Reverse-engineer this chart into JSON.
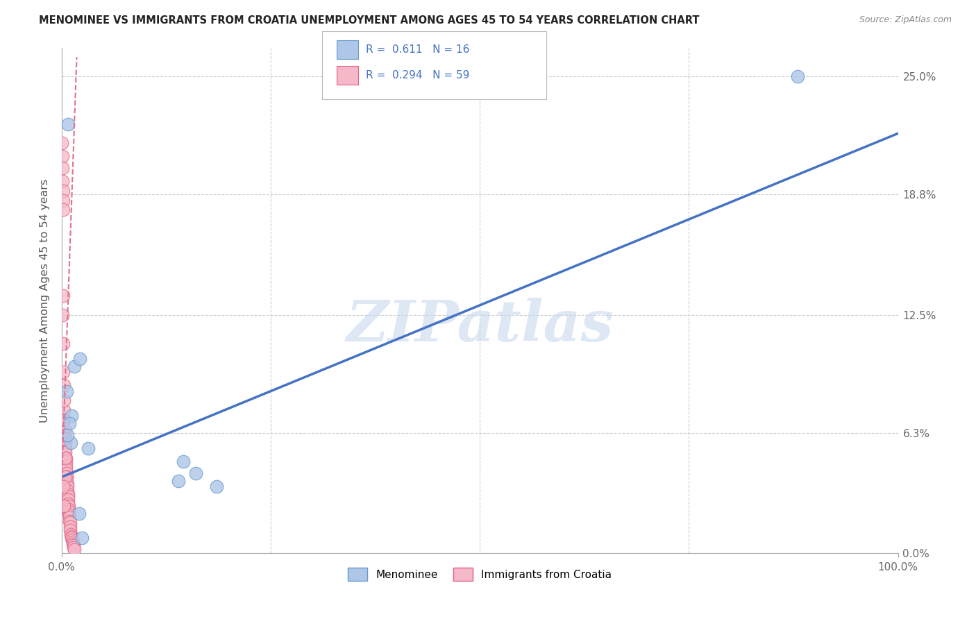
{
  "title": "MENOMINEE VS IMMIGRANTS FROM CROATIA UNEMPLOYMENT AMONG AGES 45 TO 54 YEARS CORRELATION CHART",
  "source": "Source: ZipAtlas.com",
  "ylabel": "Unemployment Among Ages 45 to 54 years",
  "xlim": [
    0,
    100
  ],
  "ylim": [
    0,
    26.5
  ],
  "ylabel_ticks": [
    0.0,
    6.3,
    12.5,
    18.8,
    25.0
  ],
  "ylabel_labels": [
    "0.0%",
    "6.3%",
    "12.5%",
    "18.8%",
    "25.0%"
  ],
  "xtick_positions": [
    0,
    100
  ],
  "xtick_labels": [
    "0.0%",
    "100.0%"
  ],
  "menominee_x": [
    0.8,
    1.5,
    2.2,
    1.2,
    0.9,
    1.1,
    0.6,
    3.2,
    0.7,
    14.5,
    16.0,
    14.0,
    18.5,
    88.0,
    2.1,
    2.4
  ],
  "menominee_y": [
    22.5,
    9.8,
    10.2,
    7.2,
    6.8,
    5.8,
    8.5,
    5.5,
    6.2,
    4.8,
    4.2,
    3.8,
    3.5,
    25.0,
    2.1,
    0.8
  ],
  "croatia_x": [
    0.05,
    0.08,
    0.1,
    0.12,
    0.15,
    0.18,
    0.2,
    0.22,
    0.25,
    0.28,
    0.3,
    0.32,
    0.35,
    0.38,
    0.4,
    0.42,
    0.45,
    0.48,
    0.5,
    0.52,
    0.55,
    0.58,
    0.6,
    0.62,
    0.65,
    0.68,
    0.7,
    0.72,
    0.75,
    0.78,
    0.8,
    0.82,
    0.85,
    0.88,
    0.9,
    0.92,
    0.95,
    0.98,
    1.0,
    1.05,
    1.1,
    1.15,
    1.2,
    1.25,
    1.3,
    1.35,
    1.4,
    1.45,
    1.5,
    0.1,
    0.15,
    0.2,
    0.25,
    0.3,
    0.35,
    0.4,
    0.45,
    0.2,
    0.3
  ],
  "croatia_y": [
    21.5,
    20.8,
    20.2,
    19.5,
    19.0,
    18.5,
    18.0,
    13.5,
    8.8,
    7.5,
    7.0,
    6.5,
    6.2,
    6.0,
    5.8,
    5.5,
    5.3,
    5.0,
    4.8,
    4.6,
    4.4,
    4.2,
    4.0,
    3.8,
    3.6,
    3.5,
    3.3,
    3.1,
    3.0,
    2.8,
    2.6,
    2.5,
    2.3,
    2.2,
    2.0,
    1.9,
    1.7,
    1.6,
    1.4,
    1.2,
    1.0,
    0.9,
    0.8,
    0.7,
    0.6,
    0.5,
    0.4,
    0.3,
    0.2,
    12.5,
    11.0,
    9.5,
    8.0,
    7.0,
    6.0,
    5.0,
    4.0,
    3.5,
    2.5
  ],
  "menominee_color": "#aec6e8",
  "croatia_color": "#f5b8c8",
  "menominee_edge": "#6699cc",
  "croatia_edge": "#e06080",
  "blue_line_color": "#4472c4",
  "pink_line_color": "#e07090",
  "blue_trendline_x": [
    0,
    100
  ],
  "blue_trendline_y": [
    4.0,
    22.0
  ],
  "pink_trendline_x": [
    0.0,
    1.8
  ],
  "pink_trendline_y": [
    3.8,
    26.0
  ],
  "legend_R1": "0.611",
  "legend_N1": "16",
  "legend_R2": "0.294",
  "legend_N2": "59",
  "watermark": "ZIPatlas",
  "background_color": "#ffffff",
  "grid_color": "#cccccc"
}
